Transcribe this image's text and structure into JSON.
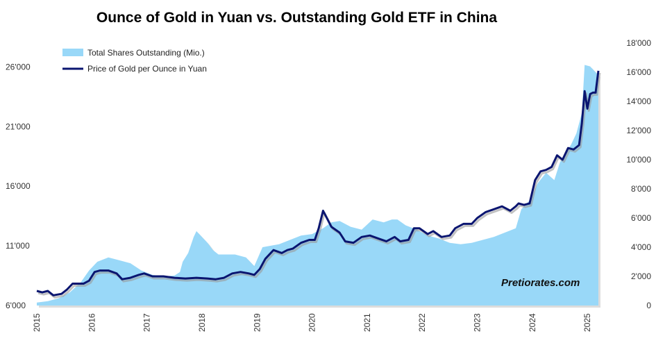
{
  "chart_data": {
    "type": "area+line",
    "title": "Ounce of Gold in Yuan vs. Outstanding Gold ETF in China",
    "watermark": "Pretiorates.com",
    "legend_placement": "top-left",
    "grid": false,
    "x_ticks": [
      "2015",
      "2016",
      "2017",
      "2018",
      "2019",
      "2020",
      "2021",
      "2022",
      "2023",
      "2024",
      "2025"
    ],
    "left_axis": {
      "ylim": [
        6000,
        28000
      ],
      "ticks": [
        6000,
        11000,
        16000,
        21000,
        26000
      ],
      "tick_labels": [
        "6'000",
        "11'000",
        "16'000",
        "21'000",
        "26'000"
      ]
    },
    "right_axis": {
      "ylim": [
        0,
        18000
      ],
      "ticks": [
        0,
        2000,
        4000,
        6000,
        8000,
        10000,
        12000,
        14000,
        16000,
        18000
      ],
      "tick_labels": [
        "0",
        "2'000",
        "4'000",
        "6'000",
        "8'000",
        "10'000",
        "12'000",
        "14'000",
        "16'000",
        "18'000"
      ]
    },
    "series": [
      {
        "name": "Total Shares Outstanding (Mio.)",
        "kind": "area",
        "axis": "right",
        "color": "#99d8f8",
        "x": [
          2015.0,
          2015.2,
          2015.4,
          2015.6,
          2015.8,
          2015.95,
          2016.1,
          2016.3,
          2016.5,
          2016.7,
          2016.9,
          2017.1,
          2017.3,
          2017.5,
          2017.6,
          2017.65,
          2017.75,
          2017.85,
          2017.9,
          2018.0,
          2018.1,
          2018.2,
          2018.3,
          2018.45,
          2018.6,
          2018.8,
          2018.95,
          2019.1,
          2019.25,
          2019.4,
          2019.6,
          2019.8,
          2020.0,
          2020.2,
          2020.35,
          2020.5,
          2020.7,
          2020.9,
          2021.1,
          2021.3,
          2021.45,
          2021.55,
          2021.7,
          2021.9,
          2022.1,
          2022.3,
          2022.5,
          2022.7,
          2022.9,
          2023.1,
          2023.3,
          2023.5,
          2023.7,
          2023.8,
          2023.95,
          2024.1,
          2024.25,
          2024.4,
          2024.5,
          2024.6,
          2024.7,
          2024.8,
          2024.9,
          2024.95,
          2025.05,
          2025.15,
          2025.2
        ],
        "values": [
          200,
          300,
          500,
          900,
          1600,
          2400,
          3000,
          3300,
          3100,
          2900,
          2400,
          2100,
          2000,
          2050,
          2300,
          3000,
          3600,
          4700,
          5100,
          4700,
          4300,
          3800,
          3500,
          3500,
          3500,
          3300,
          2700,
          4000,
          4100,
          4200,
          4500,
          4800,
          4900,
          5300,
          5700,
          5800,
          5400,
          5200,
          5900,
          5700,
          5900,
          5900,
          5500,
          5200,
          4800,
          4600,
          4300,
          4200,
          4300,
          4500,
          4700,
          5000,
          5300,
          6600,
          7200,
          8400,
          9100,
          8600,
          9800,
          10500,
          11000,
          11800,
          13200,
          16500,
          16400,
          16000,
          15800
        ]
      },
      {
        "name": "Price of Gold per Ounce in Yuan",
        "kind": "line",
        "axis": "right",
        "color": "#0a1570",
        "x": [
          2015.0,
          2015.1,
          2015.2,
          2015.3,
          2015.45,
          2015.55,
          2015.65,
          2015.75,
          2015.85,
          2015.95,
          2016.05,
          2016.15,
          2016.3,
          2016.45,
          2016.55,
          2016.7,
          2016.85,
          2016.95,
          2017.1,
          2017.3,
          2017.5,
          2017.7,
          2017.9,
          2018.1,
          2018.25,
          2018.4,
          2018.55,
          2018.7,
          2018.85,
          2018.95,
          2019.05,
          2019.15,
          2019.3,
          2019.45,
          2019.55,
          2019.65,
          2019.8,
          2019.95,
          2020.05,
          2020.12,
          2020.2,
          2020.35,
          2020.5,
          2020.6,
          2020.75,
          2020.9,
          2021.05,
          2021.2,
          2021.35,
          2021.5,
          2021.6,
          2021.75,
          2021.85,
          2021.95,
          2022.1,
          2022.2,
          2022.35,
          2022.5,
          2022.6,
          2022.75,
          2022.9,
          2023.0,
          2023.15,
          2023.3,
          2023.45,
          2023.6,
          2023.7,
          2023.75,
          2023.85,
          2023.95,
          2024.05,
          2024.15,
          2024.25,
          2024.35,
          2024.45,
          2024.55,
          2024.65,
          2024.75,
          2024.85,
          2024.9,
          2024.95,
          2025.0,
          2025.05,
          2025.1,
          2025.15,
          2025.2
        ],
        "values": [
          1000,
          900,
          1000,
          700,
          800,
          1100,
          1500,
          1500,
          1500,
          1700,
          2300,
          2400,
          2400,
          2200,
          1800,
          1900,
          2100,
          2200,
          2000,
          2000,
          1900,
          1850,
          1900,
          1850,
          1800,
          1900,
          2200,
          2300,
          2200,
          2100,
          2500,
          3200,
          3800,
          3600,
          3800,
          3900,
          4300,
          4500,
          4500,
          5300,
          6500,
          5400,
          5000,
          4400,
          4300,
          4700,
          4800,
          4600,
          4400,
          4700,
          4400,
          4500,
          5300,
          5300,
          4900,
          5100,
          4700,
          4800,
          5300,
          5600,
          5600,
          6000,
          6400,
          6600,
          6800,
          6500,
          6800,
          7000,
          6900,
          7000,
          8600,
          9200,
          9300,
          9500,
          10300,
          10000,
          10800,
          10700,
          11000,
          12500,
          14700,
          13500,
          14500,
          14600,
          14600,
          16100
        ]
      }
    ]
  }
}
